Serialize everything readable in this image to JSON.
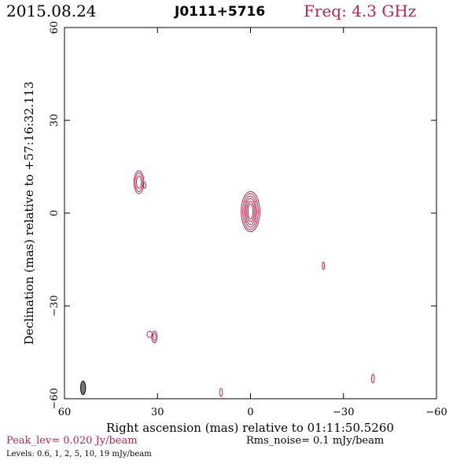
{
  "header": {
    "date": "2015.08.24",
    "source": "J0111+5716",
    "freq_text": "Freq: 4.3 GHz"
  },
  "colors": {
    "contour": "#b22a52",
    "accent_text": "#b22a52",
    "beam_fill": "#777777",
    "axis": "#000000"
  },
  "footer": {
    "peak": "Peak_lev=  0.020 Jy/beam",
    "rms": "Rms_noise=  0.1 mJy/beam",
    "levels": "Levels: 0.6,    1,    2,    5,   10,   19 mJy/beam"
  },
  "chart_data": {
    "type": "contour",
    "xlabel": "Right ascension (mas) relative to 01:11:50.5260",
    "ylabel": "Declination (mas) relative to +57:16:32.113",
    "xlim": [
      60,
      -60
    ],
    "ylim": [
      -60,
      60
    ],
    "xticks": [
      60,
      30,
      0,
      -30,
      -60
    ],
    "yticks": [
      60,
      30,
      0,
      -30,
      -60
    ],
    "xtick_labels": [
      "60",
      "30",
      "0",
      "−30",
      "−60"
    ],
    "ytick_labels": [
      "60",
      "30",
      "0",
      "−30",
      "−60"
    ],
    "contour_levels_mJy": [
      0.6,
      1,
      2,
      5,
      10,
      19
    ],
    "components": [
      {
        "name": "core",
        "x": 0,
        "y": 0.5,
        "rx": [
          0.8,
          1.2,
          1.6,
          2.0,
          2.5,
          3.0
        ],
        "ry": [
          2.5,
          3.3,
          4.2,
          5.0,
          5.8,
          6.5
        ]
      },
      {
        "name": "knot-ne",
        "x": 36,
        "y": 10,
        "rx": [
          0.8,
          1.2,
          1.6
        ],
        "ry": [
          2.0,
          3.0,
          3.7
        ]
      },
      {
        "name": "knot-ne-b",
        "x": 34.2,
        "y": 9,
        "rx": [
          0.5
        ],
        "ry": [
          1.0
        ]
      },
      {
        "name": "knot-sw",
        "x": -23.5,
        "y": -17,
        "rx": [
          0.35
        ],
        "ry": [
          1.2
        ]
      },
      {
        "name": "knot-s",
        "x": 31,
        "y": -40,
        "rx": [
          0.5,
          0.9
        ],
        "ry": [
          1.2,
          1.9
        ]
      },
      {
        "name": "knot-s-b",
        "x": 32.5,
        "y": -39.2,
        "rx": [
          0.9
        ],
        "ry": [
          1.0
        ]
      },
      {
        "name": "knot-far-s",
        "x": 9.5,
        "y": -58,
        "rx": [
          0.45
        ],
        "ry": [
          1.3
        ]
      },
      {
        "name": "knot-se",
        "x": -39.5,
        "y": -53.5,
        "rx": [
          0.45
        ],
        "ry": [
          1.4
        ]
      }
    ],
    "beam": {
      "x": 54,
      "y": -56.5,
      "rx": 0.8,
      "ry": 2.2
    },
    "grid": false
  }
}
